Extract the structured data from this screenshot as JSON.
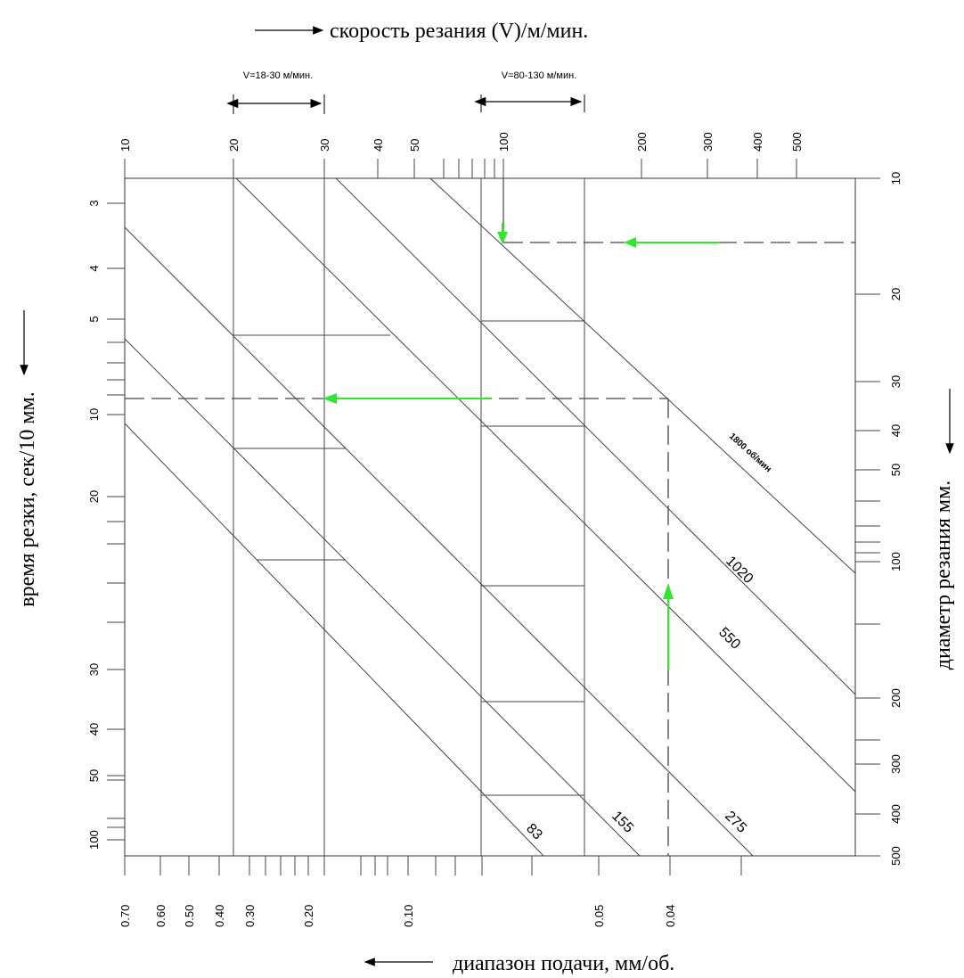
{
  "chart_data": {
    "type": "nomogram",
    "title_top": "скорость резания (V)/м/мин.",
    "title_left": "время резки, сек/10 мм.",
    "title_right": "диаметр резания мм.",
    "title_bottom": "диапазон подачи, мм/об.",
    "range_a": "V=18-30 м/мин.",
    "range_b": "V=80-130 м/мин.",
    "speed_ticks": [
      "10",
      "20",
      "30",
      "40",
      "50",
      "100",
      "200",
      "300",
      "400",
      "500"
    ],
    "time_ticks": [
      "3",
      "4",
      "5",
      "10",
      "20",
      "30",
      "40",
      "50",
      "100"
    ],
    "diameter_ticks": [
      "10",
      "20",
      "30",
      "40",
      "50",
      "100",
      "200",
      "300",
      "400",
      "500"
    ],
    "feed_ticks": [
      "0.70",
      "0.60",
      "0.50",
      "0.40",
      "0.30",
      "0.20",
      "0.10",
      "0.05",
      "0.04"
    ],
    "rpm_lines": [
      "1800 об/мин",
      "1020",
      "550",
      "275",
      "155",
      "83"
    ],
    "colors": {
      "guide_arrow": "#2ee82e",
      "line": "#444444"
    }
  }
}
